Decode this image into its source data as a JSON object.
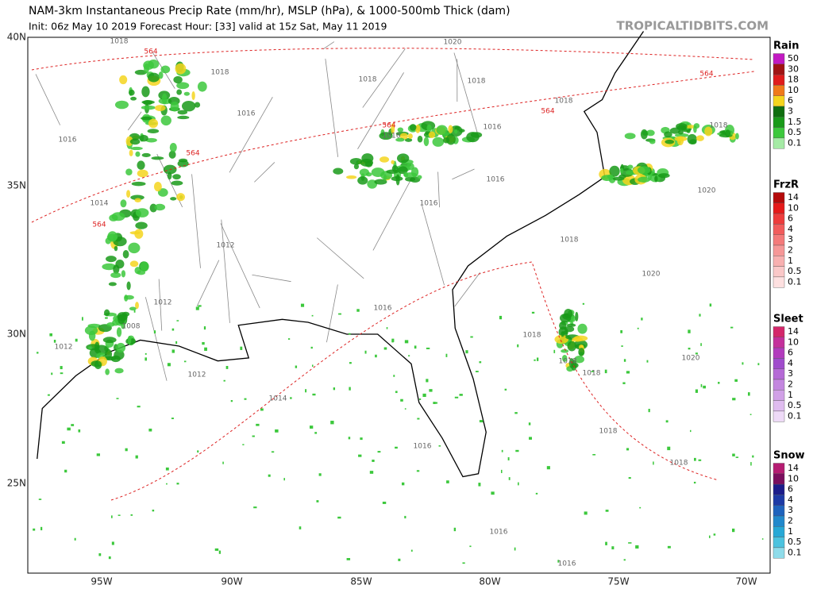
{
  "header": {
    "title": "NAM-3km Instantaneous Precip Rate (mm/hr), MSLP (hPa), & 1000-500mb Thick (dam)",
    "subtitle": "Init: 06z May 10 2019   Forecast Hour: [33]   valid at 15z Sat, May 11 2019",
    "brand": "TROPICALTIDBITS.COM"
  },
  "map": {
    "lat_labels": [
      "40N",
      "35N",
      "30N",
      "25N"
    ],
    "lon_labels": [
      "95W",
      "90W",
      "85W",
      "80W",
      "75W",
      "70W"
    ],
    "isobar_labels": [
      "1018",
      "1020",
      "1018",
      "1018",
      "1018",
      "1018",
      "1016",
      "1016",
      "1016",
      "1016",
      "1018",
      "1016",
      "1016",
      "1014",
      "1012",
      "1012",
      "1016",
      "1018",
      "1018",
      "1018",
      "1020",
      "1020",
      "1020",
      "1012",
      "1012",
      "1014",
      "1016",
      "1018",
      "1018",
      "1016",
      "1016",
      "1008",
      "1018"
    ],
    "thickness_labels": [
      "564",
      "564",
      "564",
      "564",
      "564",
      "564"
    ]
  },
  "legends": [
    {
      "title": "Rain",
      "levels": [
        "50",
        "30",
        "18",
        "10",
        "6",
        "3",
        "1.5",
        "0.5",
        "0.1"
      ],
      "colors": [
        "#c219c2",
        "#a01313",
        "#e01b1b",
        "#f07a1a",
        "#f5d51e",
        "#0f6e0f",
        "#199a19",
        "#3cc83c",
        "#a5eaa5"
      ]
    },
    {
      "title": "FrzR",
      "levels": [
        "14",
        "10",
        "6",
        "4",
        "3",
        "2",
        "1",
        "0.5",
        "0.1"
      ],
      "colors": [
        "#b40a0a",
        "#e51a1a",
        "#ee3c3c",
        "#f25c5c",
        "#f47a7a",
        "#f69797",
        "#f8b0b0",
        "#fac8c8",
        "#fde0e0"
      ]
    },
    {
      "title": "Sleet",
      "levels": [
        "14",
        "10",
        "6",
        "4",
        "3",
        "2",
        "1",
        "0.5",
        "0.1"
      ],
      "colors": [
        "#d4276a",
        "#c4309b",
        "#b23bbd",
        "#a04ccc",
        "#b56ad6",
        "#c386df",
        "#d1a1e7",
        "#dfbcef",
        "#eedaf7"
      ]
    },
    {
      "title": "Snow",
      "levels": [
        "14",
        "10",
        "6",
        "4",
        "3",
        "2",
        "1",
        "0.5",
        "0.1"
      ],
      "colors": [
        "#b51c72",
        "#7a0e5e",
        "#1c1c8a",
        "#1d3aa6",
        "#1f63bd",
        "#2289cc",
        "#27a8d6",
        "#4cc3df",
        "#8fdcea"
      ]
    }
  ]
}
